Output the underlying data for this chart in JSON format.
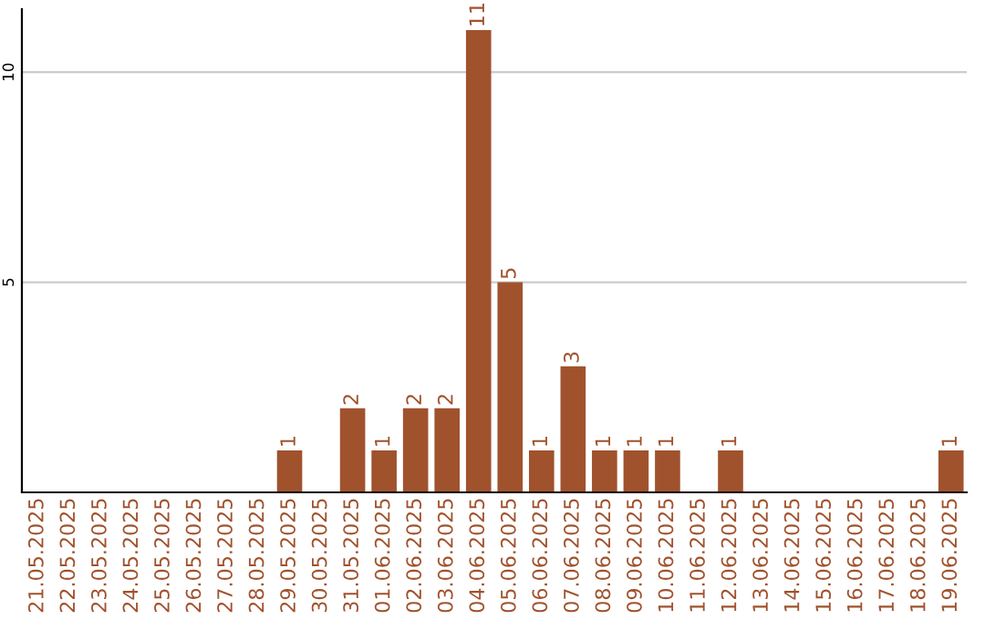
{
  "chart_data": {
    "type": "bar",
    "categories": [
      "21.05.2025",
      "22.05.2025",
      "23.05.2025",
      "24.05.2025",
      "25.05.2025",
      "26.05.2025",
      "27.05.2025",
      "28.05.2025",
      "29.05.2025",
      "30.05.2025",
      "31.05.2025",
      "01.06.2025",
      "02.06.2025",
      "03.06.2025",
      "04.06.2025",
      "05.06.2025",
      "06.06.2025",
      "07.06.2025",
      "08.06.2025",
      "09.06.2025",
      "10.06.2025",
      "11.06.2025",
      "12.06.2025",
      "13.06.2025",
      "14.06.2025",
      "15.06.2025",
      "16.06.2025",
      "17.06.2025",
      "18.06.2025",
      "19.06.2025"
    ],
    "values": [
      0,
      0,
      0,
      0,
      0,
      0,
      0,
      0,
      1,
      0,
      2,
      1,
      2,
      2,
      11,
      5,
      1,
      3,
      1,
      1,
      1,
      0,
      1,
      0,
      0,
      0,
      0,
      0,
      0,
      1
    ],
    "value_labels": [
      null,
      null,
      null,
      null,
      null,
      null,
      null,
      null,
      "1",
      null,
      "2",
      "1",
      "2",
      "2",
      "11",
      "5",
      "1",
      "3",
      "1",
      "1",
      "1",
      null,
      "1",
      null,
      null,
      null,
      null,
      null,
      null,
      "1"
    ],
    "color": "#a0522d",
    "ylim": [
      0,
      11.5
    ],
    "yticks": [
      5,
      10
    ],
    "grid": "y"
  }
}
